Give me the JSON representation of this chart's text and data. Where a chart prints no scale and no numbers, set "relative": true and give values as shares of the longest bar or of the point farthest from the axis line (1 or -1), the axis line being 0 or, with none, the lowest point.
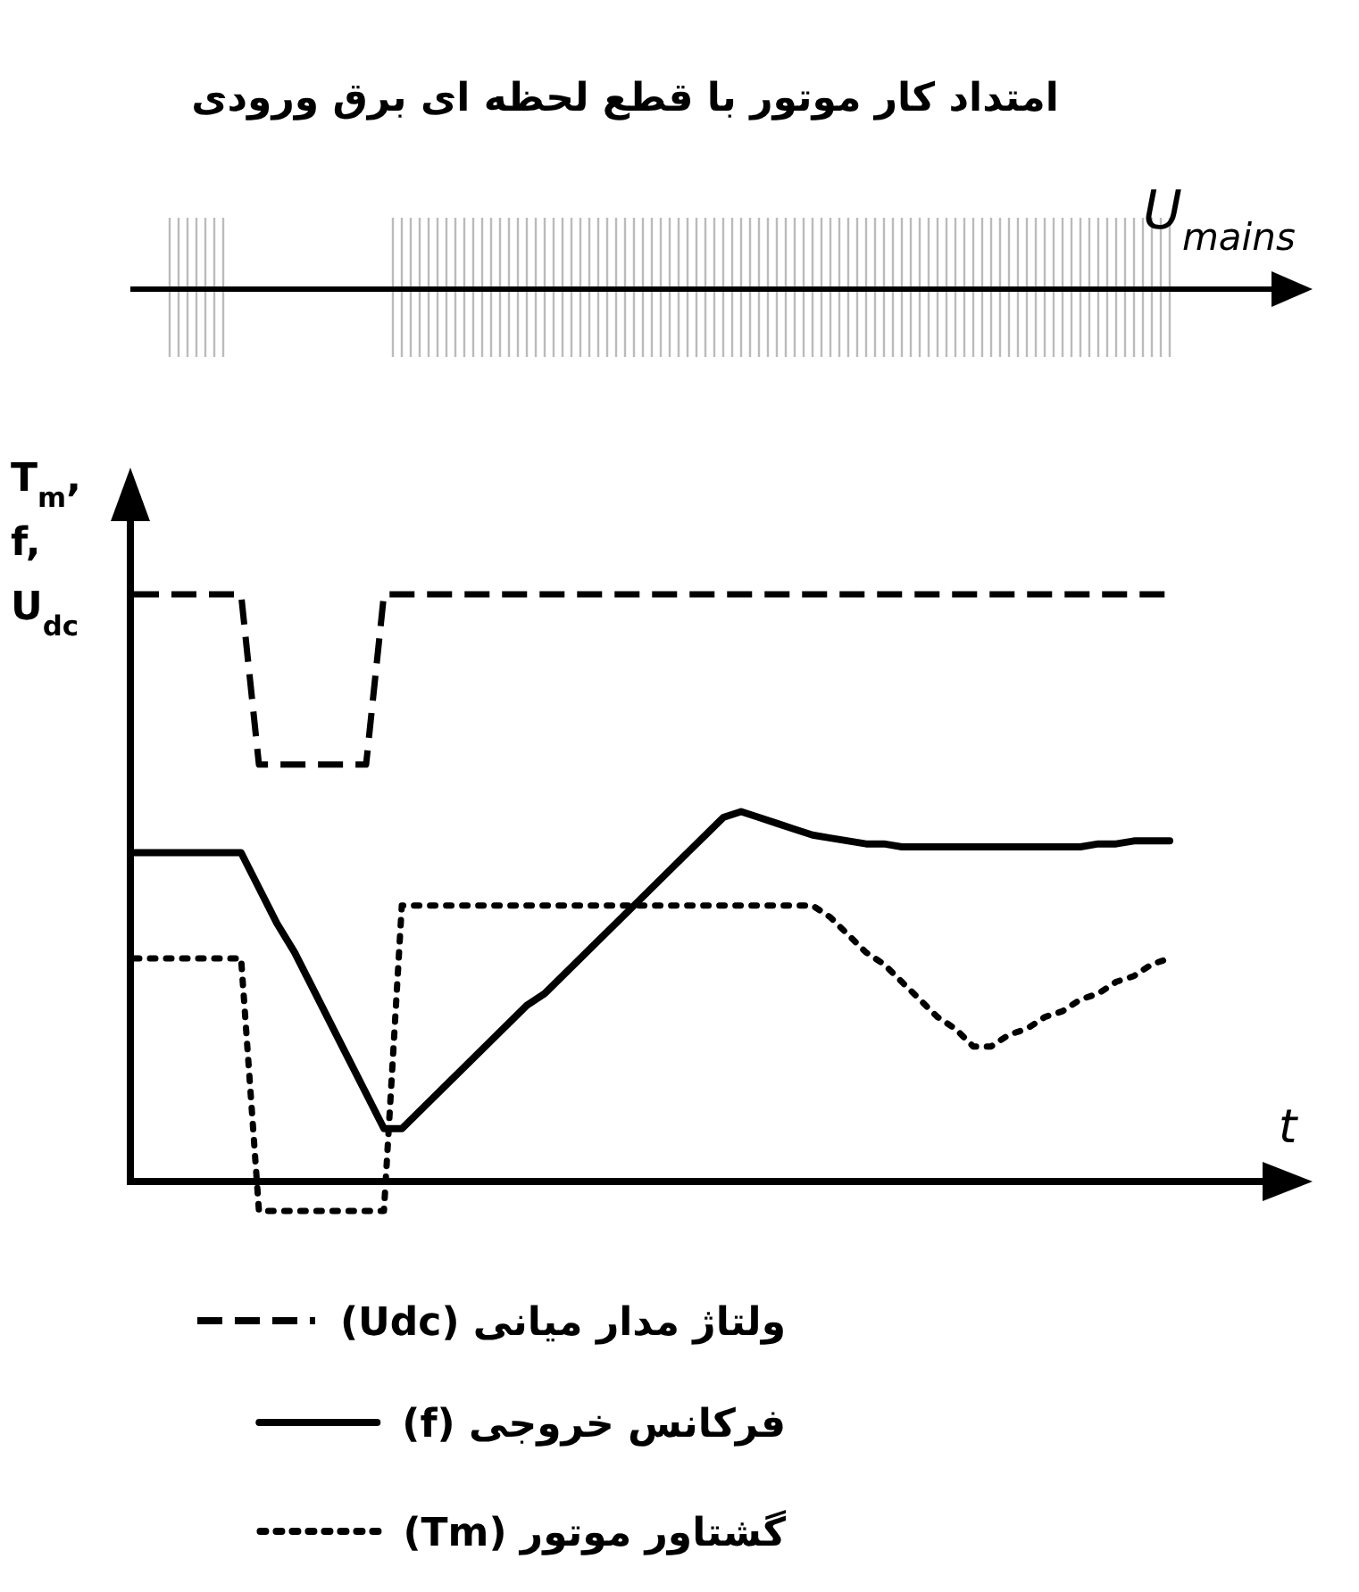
{
  "chart_data": {
    "type": "line",
    "title": "امتداد کار موتور با قطع لحظه ای برق ورودی",
    "xlabel": "t",
    "ylabel": "T$_{m}$, f, U$_{dc}$",
    "annotations": [
      "U$_{mains}$"
    ],
    "relative": true,
    "legend": "bottom",
    "marker": "none",
    "categories": [
      null,
      null,
      null,
      null,
      null,
      null,
      null,
      null,
      null,
      null,
      null,
      null,
      null,
      null,
      null,
      null,
      null,
      null,
      null,
      null,
      null,
      null,
      null,
      null,
      null,
      null,
      null,
      null,
      null,
      null,
      null,
      null,
      null,
      null,
      null,
      null,
      null,
      null,
      null,
      null,
      null,
      null,
      null,
      null,
      null,
      null,
      null,
      null,
      null,
      null,
      null,
      null,
      null,
      null,
      null,
      null,
      null,
      null,
      null
    ],
    "series": [
      {
        "name": "ولتاژ مدار میانی (Udc)",
        "color": "#000000",
        "line_style": "dashed",
        "values": [
          1,
          1,
          1,
          1,
          1,
          1,
          1,
          0.71,
          0.71,
          0.71,
          0.71,
          0.71,
          0.71,
          0.71,
          1,
          1,
          1,
          1,
          1,
          1,
          1,
          1,
          1,
          1,
          1,
          1,
          1,
          1,
          1,
          1,
          1,
          1,
          1,
          1,
          1,
          1,
          1,
          1,
          1,
          1,
          1,
          1,
          1,
          1,
          1,
          1,
          1,
          1,
          1,
          1,
          1,
          1,
          1,
          1,
          1,
          1,
          1,
          1,
          1
        ]
      },
      {
        "name": "فرکانس خروجی (f)",
        "color": "#000000",
        "line_style": "solid",
        "values": [
          0.56,
          0.56,
          0.56,
          0.56,
          0.56,
          0.56,
          0.56,
          0.5,
          0.44,
          0.39,
          0.33,
          0.27,
          0.21,
          0.15,
          0.09,
          0.09,
          0.12,
          0.15,
          0.18,
          0.21,
          0.24,
          0.27,
          0.3,
          0.32,
          0.35,
          0.38,
          0.41,
          0.44,
          0.47,
          0.5,
          0.53,
          0.56,
          0.59,
          0.62,
          0.63,
          0.62,
          0.61,
          0.6,
          0.59,
          0.585,
          0.58,
          0.575,
          0.575,
          0.57,
          0.57,
          0.57,
          0.57,
          0.57,
          0.57,
          0.57,
          0.57,
          0.57,
          0.57,
          0.57,
          0.575,
          0.575,
          0.58,
          0.58,
          0.58
        ]
      },
      {
        "name": "گشتاور موتور (Tm)",
        "color": "#000000",
        "line_style": "dotted",
        "values": [
          0.38,
          0.38,
          0.38,
          0.38,
          0.38,
          0.38,
          0.38,
          -0.05,
          -0.05,
          -0.05,
          -0.05,
          -0.05,
          -0.05,
          -0.05,
          -0.05,
          0.47,
          0.47,
          0.47,
          0.47,
          0.47,
          0.47,
          0.47,
          0.47,
          0.47,
          0.47,
          0.47,
          0.47,
          0.47,
          0.47,
          0.47,
          0.47,
          0.47,
          0.47,
          0.47,
          0.47,
          0.47,
          0.47,
          0.47,
          0.47,
          0.45,
          0.42,
          0.39,
          0.37,
          0.34,
          0.31,
          0.28,
          0.26,
          0.23,
          0.23,
          0.25,
          0.26,
          0.28,
          0.29,
          0.31,
          0.32,
          0.34,
          0.35,
          0.37,
          0.38
        ]
      }
    ]
  }
}
